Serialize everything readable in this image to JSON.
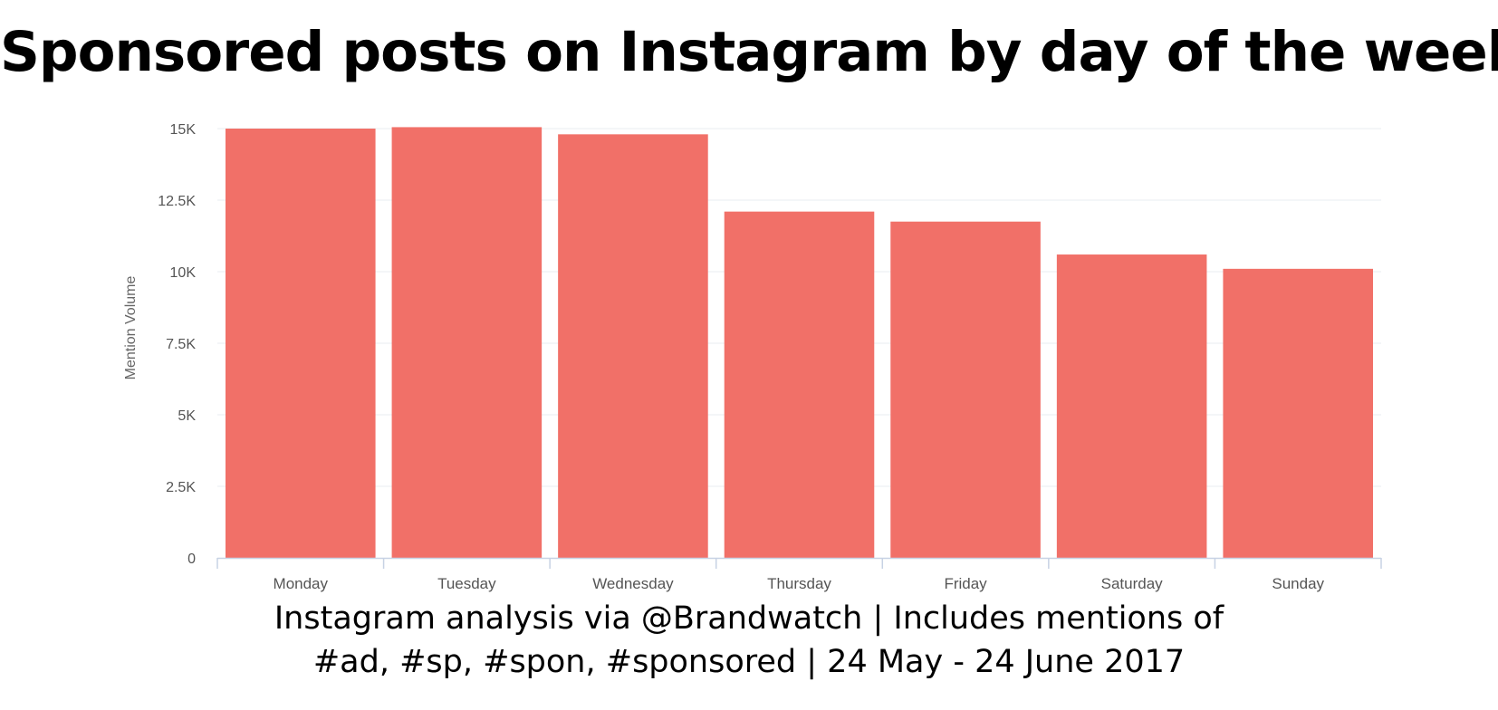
{
  "colors": {
    "bar": "#f17068",
    "grid": "#eaeef2",
    "axis": "#c7d2e4",
    "text": "#555555"
  },
  "caption": {
    "line1": "Instagram analysis via @Brandwatch | Includes mentions of",
    "line2": "#ad, #sp, #spon, #sponsored | 24 May - 24 June 2017"
  },
  "chart_data": {
    "type": "bar",
    "title": "Sponsored posts on Instagram by day of the week",
    "xlabel": "",
    "ylabel": "Mention Volume",
    "categories": [
      "Monday",
      "Tuesday",
      "Wednesday",
      "Thursday",
      "Friday",
      "Saturday",
      "Sunday"
    ],
    "values": [
      15000,
      15050,
      14800,
      12100,
      11750,
      10600,
      10100
    ],
    "ylim": [
      0,
      15000
    ],
    "yticks": [
      0,
      2500,
      5000,
      7500,
      10000,
      12500,
      15000
    ],
    "ytick_labels": [
      "0",
      "2.5K",
      "5K",
      "7.5K",
      "10K",
      "12.5K",
      "15K"
    ],
    "grid": true,
    "legend": "none"
  }
}
